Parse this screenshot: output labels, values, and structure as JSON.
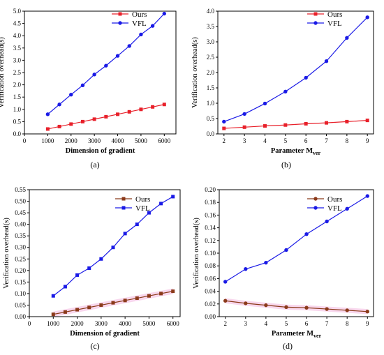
{
  "chart_data": [
    {
      "type": "line",
      "panel_label": "(a)",
      "xlabel": "Dimension of gradient",
      "ylabel": "Verification overhead(s)",
      "xlim": [
        0,
        6500
      ],
      "ylim": [
        0,
        5.0
      ],
      "xticks": [
        0,
        1000,
        2000,
        3000,
        4000,
        5000,
        6000
      ],
      "yticks": [
        0.0,
        0.5,
        1.0,
        1.5,
        2.0,
        2.5,
        3.0,
        3.5,
        4.0,
        4.5,
        5.0
      ],
      "xtick_labels": [
        "0",
        "1000",
        "2000",
        "3000",
        "4000",
        "5000",
        "6000"
      ],
      "ytick_labels": [
        "0.0",
        "0.5",
        "1.0",
        "1.5",
        "2.0",
        "2.5",
        "3.0",
        "3.5",
        "4.0",
        "4.5",
        "5.0"
      ],
      "legend_position": "top-center",
      "x": [
        1000,
        1500,
        2000,
        2500,
        3000,
        3500,
        4000,
        4500,
        5000,
        5500,
        6000
      ],
      "series": [
        {
          "name": "Ours",
          "marker": "square",
          "color": "#e8202a",
          "values": [
            0.2,
            0.3,
            0.4,
            0.5,
            0.6,
            0.7,
            0.8,
            0.9,
            1.0,
            1.1,
            1.2
          ]
        },
        {
          "name": "VFL",
          "marker": "circle",
          "color": "#1a1ae6",
          "values": [
            0.8,
            1.2,
            1.6,
            1.98,
            2.42,
            2.78,
            3.18,
            3.58,
            4.05,
            4.4,
            4.9
          ]
        }
      ]
    },
    {
      "type": "line",
      "panel_label": "(b)",
      "xlabel": "Parameter M",
      "xlabel_sub": "ver",
      "ylabel": "Verification overhead(s)",
      "xlim": [
        1.7,
        9.3
      ],
      "ylim": [
        0,
        4.0
      ],
      "xticks": [
        2,
        3,
        4,
        5,
        6,
        7,
        8,
        9
      ],
      "yticks": [
        0.0,
        0.5,
        1.0,
        1.5,
        2.0,
        2.5,
        3.0,
        3.5,
        4.0
      ],
      "xtick_labels": [
        "2",
        "3",
        "4",
        "5",
        "6",
        "7",
        "8",
        "9"
      ],
      "ytick_labels": [
        "0.0",
        "0.5",
        "1.0",
        "1.5",
        "2.0",
        "2.5",
        "3.0",
        "3.5",
        "4.0"
      ],
      "legend_position": "top-right",
      "x": [
        2,
        3,
        4,
        5,
        6,
        7,
        8,
        9
      ],
      "series": [
        {
          "name": "Ours",
          "marker": "square",
          "color": "#e8202a",
          "values": [
            0.18,
            0.22,
            0.26,
            0.29,
            0.33,
            0.36,
            0.4,
            0.44
          ]
        },
        {
          "name": "VFL",
          "marker": "circle",
          "color": "#1a1ae6",
          "values": [
            0.4,
            0.65,
            0.99,
            1.38,
            1.83,
            2.37,
            3.13,
            3.8
          ]
        }
      ]
    },
    {
      "type": "line",
      "panel_label": "(c)",
      "xlabel": "Dimension of gradient",
      "ylabel": "Verification overhead(s)",
      "xlim": [
        0,
        6300
      ],
      "ylim": [
        0,
        0.55
      ],
      "xticks": [
        0,
        1000,
        2000,
        3000,
        4000,
        5000,
        6000
      ],
      "yticks": [
        0.0,
        0.05,
        0.1,
        0.15,
        0.2,
        0.25,
        0.3,
        0.35,
        0.4,
        0.45,
        0.5,
        0.55
      ],
      "xtick_labels": [
        "0",
        "1000",
        "2000",
        "3000",
        "4000",
        "5000",
        "6000"
      ],
      "ytick_labels": [
        "0.00",
        "0.05",
        "0.10",
        "0.15",
        "0.20",
        "0.25",
        "0.30",
        "0.35",
        "0.40",
        "0.45",
        "0.50",
        "0.55"
      ],
      "legend_position": "top-right",
      "x": [
        1000,
        1500,
        2000,
        2500,
        3000,
        3500,
        4000,
        4500,
        5000,
        5500,
        6000
      ],
      "series": [
        {
          "name": "Ours",
          "marker": "square",
          "color": "#8b3a1a",
          "values": [
            0.01,
            0.02,
            0.03,
            0.04,
            0.05,
            0.06,
            0.07,
            0.08,
            0.09,
            0.1,
            0.11
          ]
        },
        {
          "name": "VFL",
          "marker": "square",
          "color": "#1a1ae6",
          "values": [
            0.09,
            0.13,
            0.18,
            0.21,
            0.25,
            0.3,
            0.36,
            0.4,
            0.45,
            0.49,
            0.52
          ]
        }
      ]
    },
    {
      "type": "line",
      "panel_label": "(d)",
      "xlabel": "Parameter M",
      "xlabel_sub": "ver",
      "ylabel": "Verification overhead(s)",
      "xlim": [
        1.7,
        9.3
      ],
      "ylim": [
        0,
        0.2
      ],
      "xticks": [
        2,
        3,
        4,
        5,
        6,
        7,
        8,
        9
      ],
      "yticks": [
        0.0,
        0.02,
        0.04,
        0.06,
        0.08,
        0.1,
        0.12,
        0.14,
        0.16,
        0.18,
        0.2
      ],
      "xtick_labels": [
        "2",
        "3",
        "4",
        "5",
        "6",
        "7",
        "8",
        "9"
      ],
      "ytick_labels": [
        "0.00",
        "0.02",
        "0.04",
        "0.06",
        "0.08",
        "0.10",
        "0.12",
        "0.14",
        "0.16",
        "0.18",
        "0.20"
      ],
      "legend_position": "top-center",
      "x": [
        2,
        3,
        4,
        5,
        6,
        7,
        8,
        9
      ],
      "series": [
        {
          "name": "Ours",
          "marker": "circle",
          "color": "#8b3a1a",
          "values": [
            0.025,
            0.021,
            0.018,
            0.015,
            0.014,
            0.012,
            0.01,
            0.008
          ]
        },
        {
          "name": "VFL",
          "marker": "circle",
          "color": "#1a1ae6",
          "values": [
            0.055,
            0.075,
            0.085,
            0.105,
            0.13,
            0.15,
            0.17,
            0.19
          ]
        }
      ]
    }
  ]
}
